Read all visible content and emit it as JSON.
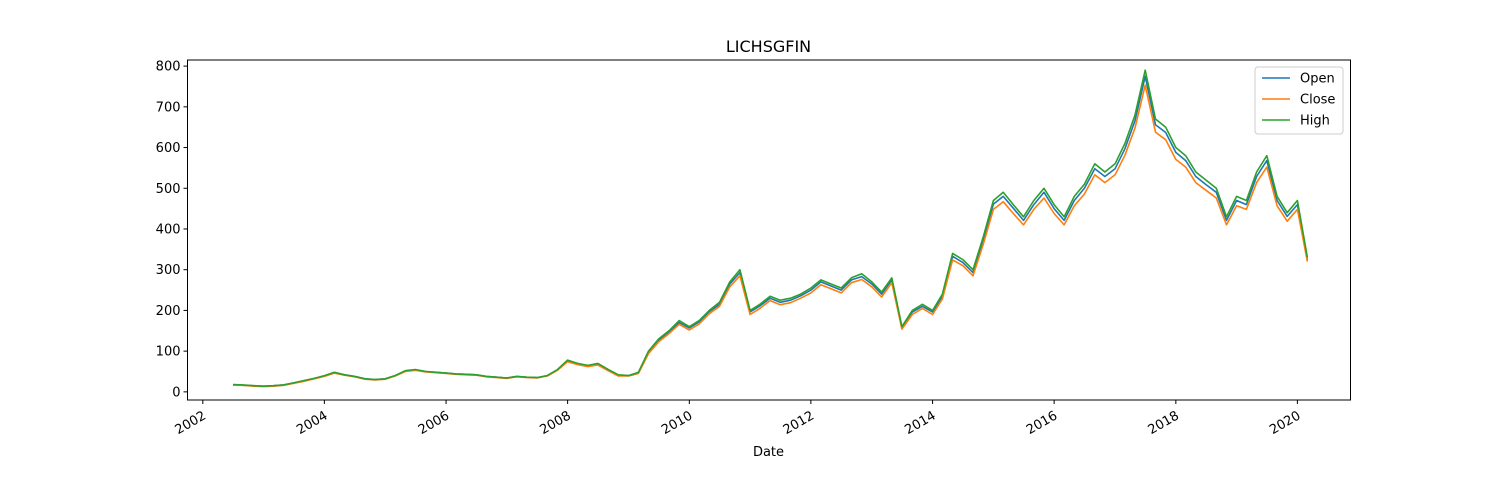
{
  "chart_data": {
    "type": "line",
    "title": "LICHSGFIN",
    "xlabel": "Date",
    "ylabel": "",
    "x_range": [
      "2001-10-01",
      "2020-11-15"
    ],
    "ylim": [
      -20,
      815
    ],
    "x_ticks": [
      {
        "date": "2002-01-01",
        "label": "2002"
      },
      {
        "date": "2004-01-01",
        "label": "2004"
      },
      {
        "date": "2006-01-01",
        "label": "2006"
      },
      {
        "date": "2008-01-01",
        "label": "2008"
      },
      {
        "date": "2010-01-01",
        "label": "2010"
      },
      {
        "date": "2012-01-01",
        "label": "2012"
      },
      {
        "date": "2014-01-01",
        "label": "2014"
      },
      {
        "date": "2016-01-01",
        "label": "2016"
      },
      {
        "date": "2018-01-01",
        "label": "2018"
      },
      {
        "date": "2020-01-01",
        "label": "2020"
      }
    ],
    "y_ticks": [
      0,
      100,
      200,
      300,
      400,
      500,
      600,
      700,
      800
    ],
    "grid": false,
    "legend_position": "top-right",
    "series": [
      {
        "name": "Open",
        "color": "#1f77b4"
      },
      {
        "name": "Close",
        "color": "#ff7f0e"
      },
      {
        "name": "High",
        "color": "#2ca02c"
      }
    ],
    "dates": [
      "2002-07-01",
      "2002-09-01",
      "2002-11-01",
      "2003-01-01",
      "2003-03-01",
      "2003-05-01",
      "2003-07-01",
      "2003-09-01",
      "2003-11-01",
      "2004-01-01",
      "2004-03-01",
      "2004-05-01",
      "2004-07-01",
      "2004-09-01",
      "2004-11-01",
      "2005-01-01",
      "2005-03-01",
      "2005-05-01",
      "2005-07-01",
      "2005-09-01",
      "2005-11-01",
      "2006-01-01",
      "2006-03-01",
      "2006-05-01",
      "2006-07-01",
      "2006-09-01",
      "2006-11-01",
      "2007-01-01",
      "2007-03-01",
      "2007-05-01",
      "2007-07-01",
      "2007-09-01",
      "2007-11-01",
      "2008-01-01",
      "2008-03-01",
      "2008-05-01",
      "2008-07-01",
      "2008-09-01",
      "2008-11-01",
      "2009-01-01",
      "2009-03-01",
      "2009-05-01",
      "2009-07-01",
      "2009-09-01",
      "2009-11-01",
      "2010-01-01",
      "2010-03-01",
      "2010-05-01",
      "2010-07-01",
      "2010-09-01",
      "2010-11-01",
      "2011-01-01",
      "2011-03-01",
      "2011-05-01",
      "2011-07-01",
      "2011-09-01",
      "2011-11-01",
      "2012-01-01",
      "2012-03-01",
      "2012-05-01",
      "2012-07-01",
      "2012-09-01",
      "2012-11-01",
      "2013-01-01",
      "2013-03-01",
      "2013-05-01",
      "2013-07-01",
      "2013-09-01",
      "2013-11-01",
      "2014-01-01",
      "2014-03-01",
      "2014-05-01",
      "2014-07-01",
      "2014-09-01",
      "2014-11-01",
      "2015-01-01",
      "2015-03-01",
      "2015-05-01",
      "2015-07-01",
      "2015-09-01",
      "2015-11-01",
      "2016-01-01",
      "2016-03-01",
      "2016-05-01",
      "2016-07-01",
      "2016-09-01",
      "2016-11-01",
      "2017-01-01",
      "2017-03-01",
      "2017-05-01",
      "2017-07-01",
      "2017-09-01",
      "2017-11-01",
      "2018-01-01",
      "2018-03-01",
      "2018-05-01",
      "2018-07-01",
      "2018-09-01",
      "2018-11-01",
      "2019-01-01",
      "2019-03-01",
      "2019-05-01",
      "2019-07-01",
      "2019-09-01",
      "2019-11-01",
      "2020-01-01",
      "2020-03-01"
    ],
    "high": [
      18,
      17,
      15,
      14,
      15,
      17,
      22,
      28,
      33,
      40,
      48,
      42,
      38,
      32,
      30,
      32,
      40,
      52,
      55,
      50,
      48,
      46,
      44,
      43,
      42,
      38,
      36,
      34,
      38,
      36,
      35,
      40,
      55,
      78,
      70,
      65,
      70,
      55,
      42,
      40,
      48,
      100,
      130,
      150,
      175,
      160,
      175,
      200,
      220,
      270,
      300,
      200,
      215,
      235,
      225,
      230,
      240,
      255,
      275,
      265,
      255,
      280,
      290,
      270,
      245,
      280,
      160,
      200,
      215,
      200,
      240,
      340,
      325,
      300,
      380,
      470,
      490,
      460,
      430,
      470,
      500,
      460,
      430,
      480,
      510,
      560,
      540,
      560,
      610,
      680,
      790,
      670,
      650,
      600,
      580,
      540,
      520,
      500,
      430,
      480,
      470,
      540,
      580,
      480,
      440,
      470,
      330
    ],
    "open": [
      17,
      16,
      15,
      14,
      15,
      17,
      22,
      27,
      33,
      39,
      47,
      42,
      38,
      32,
      30,
      32,
      40,
      51,
      54,
      50,
      48,
      46,
      44,
      43,
      42,
      38,
      36,
      34,
      38,
      36,
      35,
      40,
      54,
      76,
      69,
      64,
      68,
      54,
      41,
      40,
      47,
      97,
      127,
      147,
      170,
      157,
      172,
      197,
      215,
      265,
      293,
      196,
      211,
      230,
      220,
      225,
      236,
      250,
      270,
      260,
      250,
      275,
      283,
      265,
      240,
      275,
      158,
      196,
      210,
      196,
      235,
      333,
      318,
      293,
      372,
      461,
      480,
      451,
      421,
      460,
      490,
      450,
      421,
      470,
      500,
      548,
      529,
      548,
      597,
      666,
      775,
      656,
      637,
      588,
      568,
      529,
      509,
      490,
      421,
      470,
      460,
      529,
      568,
      470,
      431,
      460,
      323
    ],
    "close": [
      17,
      16,
      14,
      13,
      14,
      16,
      21,
      26,
      32,
      38,
      46,
      41,
      37,
      31,
      29,
      31,
      39,
      50,
      53,
      49,
      47,
      45,
      43,
      42,
      41,
      37,
      35,
      33,
      37,
      35,
      34,
      39,
      53,
      74,
      67,
      62,
      66,
      52,
      39,
      39,
      45,
      94,
      123,
      143,
      166,
      152,
      167,
      192,
      210,
      258,
      285,
      190,
      205,
      224,
      214,
      219,
      230,
      243,
      263,
      253,
      243,
      268,
      276,
      258,
      233,
      268,
      154,
      190,
      205,
      190,
      228,
      324,
      310,
      285,
      362,
      448,
      467,
      438,
      410,
      448,
      476,
      438,
      410,
      457,
      486,
      533,
      514,
      533,
      581,
      648,
      753,
      638,
      619,
      571,
      552,
      514,
      495,
      476,
      410,
      457,
      448,
      514,
      552,
      457,
      419,
      448,
      320
    ]
  }
}
